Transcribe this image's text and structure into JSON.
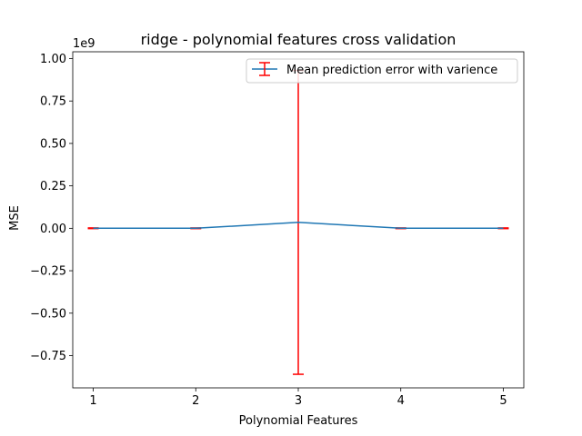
{
  "chart_data": {
    "type": "line",
    "title": "ridge - polynomial features cross validation",
    "xlabel": "Polynomial Features",
    "ylabel": "MSE",
    "y_offset_label": "1e9",
    "x": [
      1,
      2,
      3,
      4,
      5
    ],
    "x_tick_labels": [
      "1",
      "2",
      "3",
      "4",
      "5"
    ],
    "y_ticks": [
      -0.75,
      -0.5,
      -0.25,
      0.0,
      0.25,
      0.5,
      0.75,
      1.0
    ],
    "y_tick_labels": [
      "−0.75",
      "−0.50",
      "−0.25",
      "0.00",
      "0.25",
      "0.50",
      "0.75",
      "1.00"
    ],
    "xlim": [
      0.8,
      5.2
    ],
    "ylim": [
      -0.94,
      1.04
    ],
    "series": [
      {
        "name": "Mean prediction error with varience",
        "values": [
          0.0003,
          0.0002,
          0.035,
          0.0003,
          0.0002
        ],
        "errors": [
          0.002,
          0.002,
          0.895,
          0.002,
          0.002
        ],
        "line_color": "#1f77b4",
        "error_color": "#ff0000"
      }
    ],
    "legend_position": "upper right",
    "grid": false
  }
}
